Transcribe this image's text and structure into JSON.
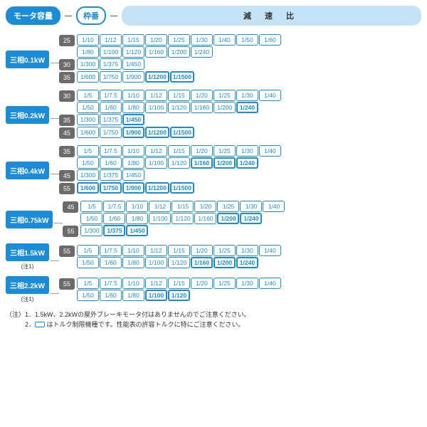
{
  "header": {
    "motor_label": "モータ容量",
    "frame_label": "枠番",
    "ratio_label": "減 速 比"
  },
  "colors": {
    "primary": "#1a8cd8",
    "frame_bg": "#6b6b6b",
    "header_ratio_bg": "#c5e3f6"
  },
  "groups": [
    {
      "motor": "三相0.1kW",
      "note": "",
      "frames": [
        {
          "num": "25",
          "rows": [
            [
              {
                "v": "1/10"
              },
              {
                "v": "1/12"
              },
              {
                "v": "1/15"
              },
              {
                "v": "1/20"
              },
              {
                "v": "1/25"
              },
              {
                "v": "1/30"
              },
              {
                "v": "1/40"
              },
              {
                "v": "1/50"
              },
              {
                "v": "1/60"
              }
            ],
            [
              {
                "v": "1/80"
              },
              {
                "v": "1/100"
              },
              {
                "v": "1/120"
              },
              {
                "v": "1/160"
              },
              {
                "v": "1/200"
              },
              {
                "v": "1/240"
              }
            ]
          ]
        },
        {
          "num": "30",
          "rows": [
            [
              {
                "v": "1/300"
              },
              {
                "v": "1/375"
              },
              {
                "v": "1/450"
              }
            ]
          ]
        },
        {
          "num": "35",
          "rows": [
            [
              {
                "v": "1/600"
              },
              {
                "v": "1/750"
              },
              {
                "v": "1/900"
              },
              {
                "v": "1/1200",
                "hl": true
              },
              {
                "v": "1/1500",
                "hl": true
              }
            ]
          ]
        }
      ]
    },
    {
      "motor": "三相0.2kW",
      "note": "",
      "frames": [
        {
          "num": "30",
          "rows": [
            [
              {
                "v": "1/5"
              },
              {
                "v": "1/7.5"
              },
              {
                "v": "1/10"
              },
              {
                "v": "1/12"
              },
              {
                "v": "1/15"
              },
              {
                "v": "1/20"
              },
              {
                "v": "1/25"
              },
              {
                "v": "1/30"
              },
              {
                "v": "1/40"
              }
            ],
            [
              {
                "v": "1/50"
              },
              {
                "v": "1/60"
              },
              {
                "v": "1/80"
              },
              {
                "v": "1/100"
              },
              {
                "v": "1/120"
              },
              {
                "v": "1/160"
              },
              {
                "v": "1/200"
              },
              {
                "v": "1/240",
                "hl": true
              }
            ]
          ]
        },
        {
          "num": "35",
          "rows": [
            [
              {
                "v": "1/300"
              },
              {
                "v": "1/375"
              },
              {
                "v": "1/450",
                "hl": true
              }
            ]
          ]
        },
        {
          "num": "45",
          "rows": [
            [
              {
                "v": "1/600"
              },
              {
                "v": "1/750"
              },
              {
                "v": "1/900",
                "hl": true
              },
              {
                "v": "1/1200",
                "hl": true
              },
              {
                "v": "1/1500",
                "hl": true
              }
            ]
          ]
        }
      ]
    },
    {
      "motor": "三相0.4kW",
      "note": "",
      "frames": [
        {
          "num": "35",
          "rows": [
            [
              {
                "v": "1/5"
              },
              {
                "v": "1/7.5"
              },
              {
                "v": "1/10"
              },
              {
                "v": "1/12"
              },
              {
                "v": "1/15"
              },
              {
                "v": "1/20"
              },
              {
                "v": "1/25"
              },
              {
                "v": "1/30"
              },
              {
                "v": "1/40"
              }
            ],
            [
              {
                "v": "1/50"
              },
              {
                "v": "1/60"
              },
              {
                "v": "1/80"
              },
              {
                "v": "1/100"
              },
              {
                "v": "1/120"
              },
              {
                "v": "1/160",
                "hl": true
              },
              {
                "v": "1/200",
                "hl": true
              },
              {
                "v": "1/240",
                "hl": true
              }
            ]
          ]
        },
        {
          "num": "45",
          "rows": [
            [
              {
                "v": "1/300"
              },
              {
                "v": "1/375"
              },
              {
                "v": "1/450"
              }
            ]
          ]
        },
        {
          "num": "55",
          "rows": [
            [
              {
                "v": "1/600",
                "hl": true
              },
              {
                "v": "1/750",
                "hl": true
              },
              {
                "v": "1/900",
                "hl": true
              },
              {
                "v": "1/1200",
                "hl": true
              },
              {
                "v": "1/1500",
                "hl": true
              }
            ]
          ]
        }
      ]
    },
    {
      "motor": "三相0.75kW",
      "note": "",
      "frames": [
        {
          "num": "45",
          "rows": [
            [
              {
                "v": "1/5"
              },
              {
                "v": "1/7.5"
              },
              {
                "v": "1/10"
              },
              {
                "v": "1/12"
              },
              {
                "v": "1/15"
              },
              {
                "v": "1/20"
              },
              {
                "v": "1/25"
              },
              {
                "v": "1/30"
              },
              {
                "v": "1/40"
              }
            ],
            [
              {
                "v": "1/50"
              },
              {
                "v": "1/60"
              },
              {
                "v": "1/80"
              },
              {
                "v": "1/100"
              },
              {
                "v": "1/120"
              },
              {
                "v": "1/160"
              },
              {
                "v": "1/200",
                "hl": true
              },
              {
                "v": "1/240",
                "hl": true
              }
            ]
          ]
        },
        {
          "num": "55",
          "rows": [
            [
              {
                "v": "1/300"
              },
              {
                "v": "1/375",
                "hl": true
              },
              {
                "v": "1/450",
                "hl": true
              }
            ]
          ]
        }
      ]
    },
    {
      "motor": "三相1.5kW",
      "note": "(注1)",
      "frames": [
        {
          "num": "55",
          "rows": [
            [
              {
                "v": "1/5"
              },
              {
                "v": "1/7.5"
              },
              {
                "v": "1/10"
              },
              {
                "v": "1/12"
              },
              {
                "v": "1/15"
              },
              {
                "v": "1/20"
              },
              {
                "v": "1/25"
              },
              {
                "v": "1/30"
              },
              {
                "v": "1/40"
              }
            ],
            [
              {
                "v": "1/50"
              },
              {
                "v": "1/60"
              },
              {
                "v": "1/80"
              },
              {
                "v": "1/100"
              },
              {
                "v": "1/120"
              },
              {
                "v": "1/160",
                "hl": true
              },
              {
                "v": "1/200",
                "hl": true
              },
              {
                "v": "1/240",
                "hl": true
              }
            ]
          ]
        }
      ]
    },
    {
      "motor": "三相2.2kW",
      "note": "(注1)",
      "frames": [
        {
          "num": "55",
          "rows": [
            [
              {
                "v": "1/5"
              },
              {
                "v": "1/7.5"
              },
              {
                "v": "1/10"
              },
              {
                "v": "1/12"
              },
              {
                "v": "1/15"
              },
              {
                "v": "1/20"
              },
              {
                "v": "1/25"
              },
              {
                "v": "1/30"
              },
              {
                "v": "1/40"
              }
            ],
            [
              {
                "v": "1/50"
              },
              {
                "v": "1/60"
              },
              {
                "v": "1/80"
              },
              {
                "v": "1/100",
                "hl": true
              },
              {
                "v": "1/120",
                "hl": true
              }
            ]
          ]
        }
      ]
    }
  ],
  "footer": {
    "line1": "（注）1．1.5kW、2.2kWの屋外ブレーキモータ付はありませんのでご注意ください。",
    "line2_prefix": "　　　2．",
    "line2_suffix": " はトルク制限機種です。性能表の許容トルクに特にご注意ください。"
  }
}
